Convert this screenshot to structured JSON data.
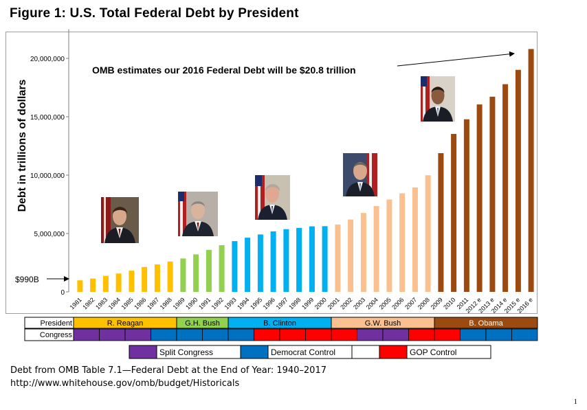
{
  "title": "Figure 1:  U.S. Total Federal Debt by President",
  "chart_data": {
    "type": "bar",
    "title": "Figure 1:  U.S. Total Federal Debt by President",
    "ylabel": "Debt in trillions of dollars",
    "xlabel": "",
    "ylim": [
      0,
      22500000
    ],
    "yticks": [
      0,
      5000000,
      10000000,
      15000000,
      20000000
    ],
    "ytick_labels": [
      "0",
      "5,000,000",
      "10,000,000",
      "15,000,000",
      "20,000,000"
    ],
    "grid": false,
    "categories": [
      "1981",
      "1982",
      "1983",
      "1984",
      "1985",
      "1986",
      "1987",
      "1988",
      "1989",
      "1990",
      "1991",
      "1992",
      "1993",
      "1994",
      "1995",
      "1996",
      "1997",
      "1998",
      "1999",
      "2000",
      "2001",
      "2002",
      "2003",
      "2004",
      "2005",
      "2006",
      "2007",
      "2008",
      "2009",
      "2010",
      "2011",
      "2012 e",
      "2013 e",
      "2014 e",
      "2015 e",
      "2016 e"
    ],
    "values": [
      990000,
      1140000,
      1370000,
      1570000,
      1820000,
      2130000,
      2350000,
      2600000,
      2860000,
      3210000,
      3600000,
      4000000,
      4350000,
      4640000,
      4920000,
      5180000,
      5370000,
      5480000,
      5610000,
      5630000,
      5770000,
      6200000,
      6760000,
      7350000,
      7910000,
      8450000,
      8950000,
      9990000,
      11880000,
      13530000,
      14780000,
      16050000,
      16720000,
      17790000,
      19020000,
      20800000
    ],
    "series_colors": [
      "#FFC000",
      "#FFC000",
      "#FFC000",
      "#FFC000",
      "#FFC000",
      "#FFC000",
      "#FFC000",
      "#FFC000",
      "#92D050",
      "#92D050",
      "#92D050",
      "#92D050",
      "#00B0F0",
      "#00B0F0",
      "#00B0F0",
      "#00B0F0",
      "#00B0F0",
      "#00B0F0",
      "#00B0F0",
      "#00B0F0",
      "#FAC090",
      "#FAC090",
      "#FAC090",
      "#FAC090",
      "#FAC090",
      "#FAC090",
      "#FAC090",
      "#FAC090",
      "#9C4A10",
      "#9C4A10",
      "#9C4A10",
      "#9C4A10",
      "#9C4A10",
      "#9C4A10",
      "#9C4A10",
      "#9C4A10"
    ],
    "annotations": {
      "estimate": "OMB estimates our 2016 Federal Debt will be $20.8 trillion",
      "first_value": "$990B"
    }
  },
  "presidents": {
    "row_label": "President",
    "terms": [
      {
        "name": "R. Reagan",
        "start": 0,
        "end": 8,
        "color": "#FFC000"
      },
      {
        "name": "G.H. Bush",
        "start": 8,
        "end": 12,
        "color": "#92D050"
      },
      {
        "name": "B. Clinton",
        "start": 12,
        "end": 20,
        "color": "#00B0F0"
      },
      {
        "name": "G.W. Bush",
        "start": 20,
        "end": 28,
        "color": "#FAC090"
      },
      {
        "name": "B. Obama",
        "start": 28,
        "end": 36,
        "color": "#9C4A10"
      }
    ]
  },
  "congress": {
    "row_label": "Congress",
    "sessions": [
      "split",
      "split",
      "split",
      "dem",
      "dem",
      "dem",
      "dem",
      "gop",
      "gop",
      "gop",
      "gop",
      "split",
      "split",
      "gop",
      "gop",
      "dem",
      "dem",
      "dem",
      "dem",
      "dem",
      "split",
      "none"
    ]
  },
  "legend": {
    "items": [
      {
        "key": "split",
        "label": "Split Congress",
        "color": "#7030A0"
      },
      {
        "key": "dem",
        "label": "Democrat Control",
        "color": "#0070C0"
      },
      {
        "key": "none",
        "label": "",
        "color": "#FFFFFF"
      },
      {
        "key": "gop",
        "label": "GOP Control",
        "color": "#FF0000"
      }
    ]
  },
  "source": {
    "line1": "Debt from OMB Table 7.1—Federal Debt at the End of Year: 1940–2017",
    "line2": "http://www.whitehouse.gov/omb/budget/Historicals"
  },
  "page_number": "1"
}
